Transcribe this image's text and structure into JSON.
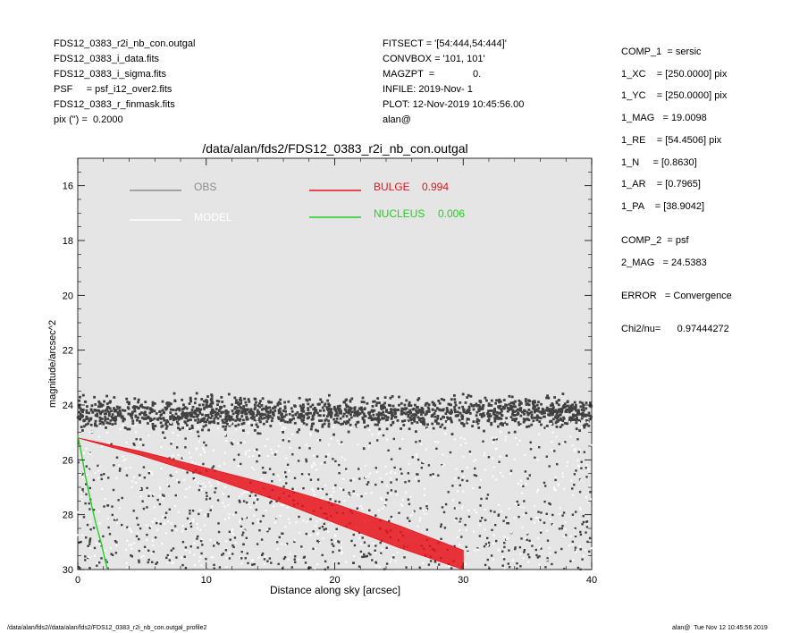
{
  "header": {
    "left_lines": [
      "FDS12_0383_r2i_nb_con.outgal",
      "FDS12_0383_i_data.fits",
      "FDS12_0383_i_sigma.fits",
      "PSF     = psf_i12_over2.fits",
      "FDS12_0383_r_finmask.fits",
      "pix (\") =  0.2000"
    ],
    "mid_lines": [
      "FITSECT = '[54:444,54:444]'",
      "CONVBOX = '101, 101'",
      "MAGZPT  =              0.",
      "INFILE: 2019-Nov- 1",
      "PLOT: 12-Nov-2019 10:45:56.00",
      "alan@"
    ]
  },
  "fit_params": [
    "COMP_1  = sersic",
    "1_XC    = [250.0000] pix",
    "1_YC    = [250.0000] pix",
    "1_MAG   = 19.0098",
    "1_RE    = [54.4506] pix",
    "1_N     = [0.8630]",
    "1_AR    = [0.7965]",
    "1_PA    = [38.9042]",
    "COMP_2  = psf",
    "2_MAG   = 24.5383",
    "ERROR   = Convergence",
    "Chi2/nu=      0.97444272"
  ],
  "footer": {
    "left": "/data/alan/fds2//data/alan/fds2/FDS12_0383_r2i_nb_con.outgal_profile2",
    "right": "alan@  Tue Nov 12 10:45:56 2019"
  },
  "colors": {
    "plot_bg": "#e5e5e5",
    "obs": "#404040",
    "obs_legend": "#8c8c8c",
    "model": "#ffffff",
    "bulge": "#e8131b",
    "nucleus": "#22d022"
  },
  "chart_data": {
    "type": "scatter",
    "title": "/data/alan/fds2/FDS12_0383_r2i_nb_con.outgal",
    "xlabel": "Distance along sky [arcsec]",
    "ylabel": "magnitude/arcsec^2",
    "xlim": [
      0,
      40
    ],
    "ylim": [
      30,
      15
    ],
    "y_inverted": true,
    "xticks": [
      0,
      10,
      20,
      30,
      40
    ],
    "yticks": [
      16,
      18,
      20,
      22,
      24,
      26,
      28,
      30
    ],
    "grid": false,
    "legend_position": "top",
    "series": [
      {
        "name": "OBS",
        "kind": "points",
        "band_center": 24.3,
        "band_spread": 0.55,
        "faint_tail_to": 30
      },
      {
        "name": "MODEL",
        "kind": "points"
      },
      {
        "name": "BULGE",
        "fraction_label": "0.994",
        "kind": "wedge",
        "x": [
          0,
          5,
          10,
          15,
          20,
          25,
          30
        ],
        "y_bright": [
          25.2,
          25.7,
          26.3,
          26.9,
          27.6,
          28.4,
          29.3
        ],
        "y_faint": [
          25.2,
          25.85,
          26.6,
          27.4,
          28.3,
          29.2,
          30.0
        ]
      },
      {
        "name": "NUCLEUS",
        "fraction_label": "0.006",
        "kind": "line",
        "x": [
          0,
          0.3,
          0.6,
          1.0,
          1.4,
          1.8,
          2.3
        ],
        "y": [
          25.1,
          25.8,
          26.6,
          27.5,
          28.3,
          29.0,
          30.0
        ]
      }
    ]
  }
}
